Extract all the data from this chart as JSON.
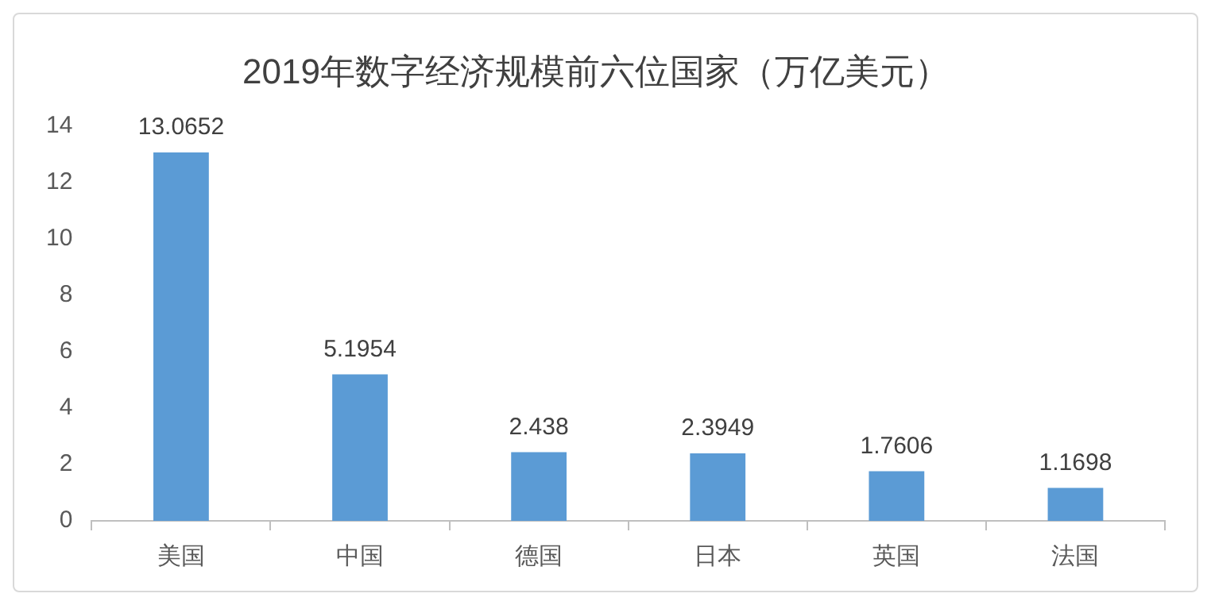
{
  "chart_data": {
    "type": "bar",
    "title": "2019年数字经济规模前六位国家（万亿美元）",
    "categories": [
      "美国",
      "中国",
      "德国",
      "日本",
      "英国",
      "法国"
    ],
    "values": [
      13.0652,
      5.1954,
      2.438,
      2.3949,
      1.7606,
      1.1698
    ],
    "color": "#5b9bd5",
    "ylim": [
      0,
      14
    ],
    "yticks": [
      0,
      2,
      4,
      6,
      8,
      10,
      12,
      14
    ],
    "grid": false,
    "data_labels": true,
    "legend": false
  }
}
